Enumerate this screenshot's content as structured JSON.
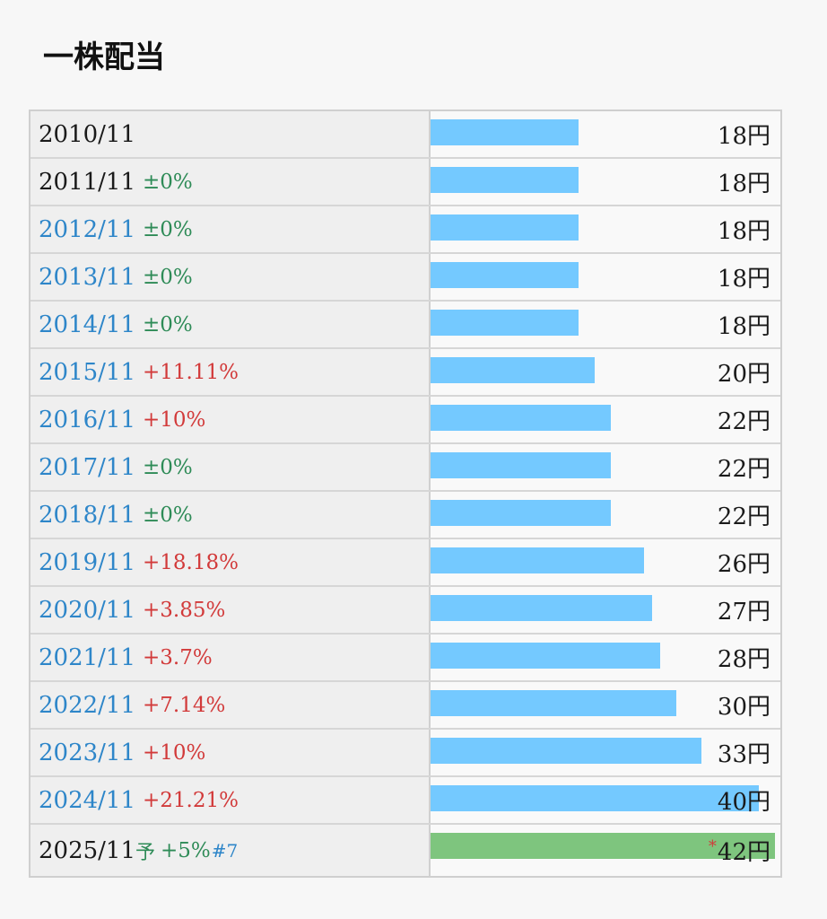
{
  "title": "一株配当",
  "rows": [
    {
      "year": "2010/11",
      "change": "",
      "change_type": "none",
      "amount": "18円",
      "value": 18,
      "link": false
    },
    {
      "year": "2011/11",
      "change": "±0%",
      "change_type": "flat",
      "amount": "18円",
      "value": 18,
      "link": false
    },
    {
      "year": "2012/11",
      "change": "±0%",
      "change_type": "flat",
      "amount": "18円",
      "value": 18,
      "link": true
    },
    {
      "year": "2013/11",
      "change": "±0%",
      "change_type": "flat",
      "amount": "18円",
      "value": 18,
      "link": true
    },
    {
      "year": "2014/11",
      "change": "±0%",
      "change_type": "flat",
      "amount": "18円",
      "value": 18,
      "link": true
    },
    {
      "year": "2015/11",
      "change": "+11.11%",
      "change_type": "up",
      "amount": "20円",
      "value": 20,
      "link": true
    },
    {
      "year": "2016/11",
      "change": "+10%",
      "change_type": "up",
      "amount": "22円",
      "value": 22,
      "link": true
    },
    {
      "year": "2017/11",
      "change": "±0%",
      "change_type": "flat",
      "amount": "22円",
      "value": 22,
      "link": true
    },
    {
      "year": "2018/11",
      "change": "±0%",
      "change_type": "flat",
      "amount": "22円",
      "value": 22,
      "link": true
    },
    {
      "year": "2019/11",
      "change": "+18.18%",
      "change_type": "up",
      "amount": "26円",
      "value": 26,
      "link": true
    },
    {
      "year": "2020/11",
      "change": "+3.85%",
      "change_type": "up",
      "amount": "27円",
      "value": 27,
      "link": true
    },
    {
      "year": "2021/11",
      "change": "+3.7%",
      "change_type": "up",
      "amount": "28円",
      "value": 28,
      "link": true
    },
    {
      "year": "2022/11",
      "change": "+7.14%",
      "change_type": "up",
      "amount": "30円",
      "value": 30,
      "link": true
    },
    {
      "year": "2023/11",
      "change": "+10%",
      "change_type": "up",
      "amount": "33円",
      "value": 33,
      "link": true
    },
    {
      "year": "2024/11",
      "change": "+21.21%",
      "change_type": "up",
      "amount": "40円",
      "value": 40,
      "link": true
    }
  ],
  "forecast": {
    "year": "2025/11",
    "yo": "予",
    "change": "+5%",
    "note": "#7",
    "star": "*",
    "amount": "42円",
    "value": 42
  },
  "chart_data": {
    "type": "bar",
    "categories": [
      "2010/11",
      "2011/11",
      "2012/11",
      "2013/11",
      "2014/11",
      "2015/11",
      "2016/11",
      "2017/11",
      "2018/11",
      "2019/11",
      "2020/11",
      "2021/11",
      "2022/11",
      "2023/11",
      "2024/11",
      "2025/11"
    ],
    "values": [
      18,
      18,
      18,
      18,
      18,
      20,
      22,
      22,
      22,
      26,
      27,
      28,
      30,
      33,
      40,
      42
    ],
    "title": "一株配当"
  },
  "colors": {
    "bar": "#74c9ff",
    "forecast_bar": "#7ec57e",
    "link": "#2e86c9",
    "up": "#d23a3a",
    "flat": "#2e8b57"
  }
}
